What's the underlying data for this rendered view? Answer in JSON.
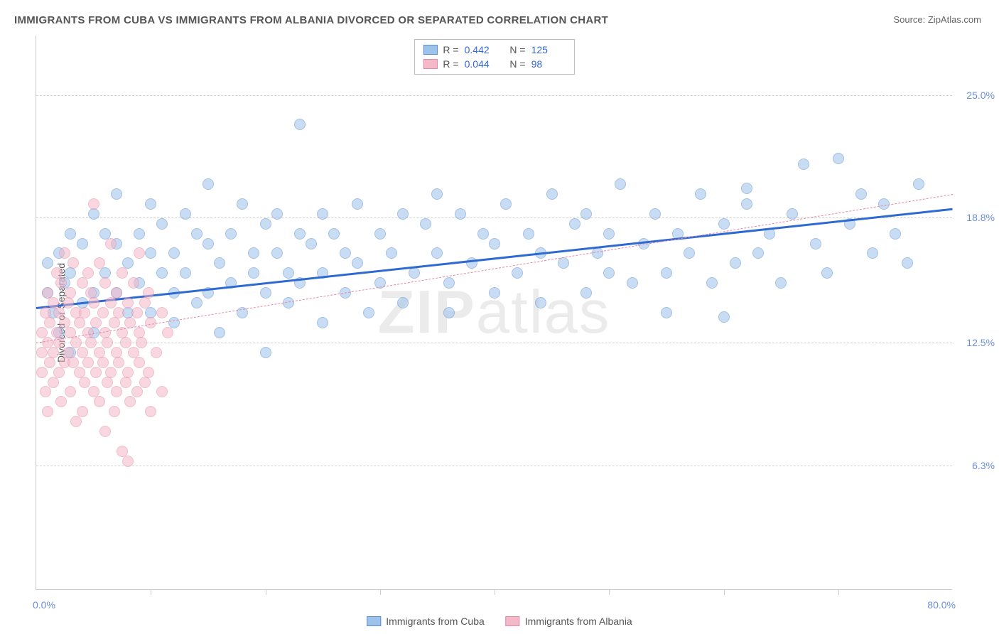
{
  "title": "IMMIGRANTS FROM CUBA VS IMMIGRANTS FROM ALBANIA DIVORCED OR SEPARATED CORRELATION CHART",
  "source_label": "Source: ",
  "source_value": "ZipAtlas.com",
  "watermark": {
    "bold": "ZIP",
    "light": "atlas"
  },
  "chart": {
    "type": "scatter",
    "background_color": "#ffffff",
    "grid_color": "#d0d0d0",
    "axis_color": "#cccccc",
    "tick_label_color": "#6a8fd8",
    "axis_label_color": "#555555",
    "y_label": "Divorced or Separated",
    "xlim": [
      0,
      80
    ],
    "ylim": [
      0,
      28
    ],
    "x_min_label": "0.0%",
    "x_max_label": "80.0%",
    "y_ticks": [
      {
        "value": 6.3,
        "label": "6.3%"
      },
      {
        "value": 12.5,
        "label": "12.5%"
      },
      {
        "value": 18.8,
        "label": "18.8%"
      },
      {
        "value": 25.0,
        "label": "25.0%"
      }
    ],
    "x_tick_positions": [
      10,
      20,
      30,
      40,
      50,
      60,
      70
    ],
    "point_radius": 8,
    "point_opacity": 0.55,
    "series": [
      {
        "name": "Immigrants from Cuba",
        "fill_color": "#9cc3ec",
        "stroke_color": "#5b8ecf",
        "trend_color": "#2e6ad1",
        "trend_width": 3,
        "trend_dash": "solid",
        "R": "0.442",
        "N": "125",
        "trend": {
          "x1": 0,
          "y1": 14.3,
          "x2": 80,
          "y2": 19.3
        },
        "points": [
          [
            1,
            15
          ],
          [
            1,
            16.5
          ],
          [
            1.5,
            14
          ],
          [
            2,
            17
          ],
          [
            2,
            13
          ],
          [
            2.5,
            15.5
          ],
          [
            3,
            18
          ],
          [
            3,
            12
          ],
          [
            3,
            16
          ],
          [
            4,
            14.5
          ],
          [
            4,
            17.5
          ],
          [
            5,
            15
          ],
          [
            5,
            19
          ],
          [
            5,
            13
          ],
          [
            6,
            16
          ],
          [
            6,
            18
          ],
          [
            7,
            15
          ],
          [
            7,
            17.5
          ],
          [
            7,
            20
          ],
          [
            8,
            14
          ],
          [
            8,
            16.5
          ],
          [
            9,
            18
          ],
          [
            9,
            15.5
          ],
          [
            10,
            17
          ],
          [
            10,
            19.5
          ],
          [
            10,
            14
          ],
          [
            11,
            16
          ],
          [
            11,
            18.5
          ],
          [
            12,
            15
          ],
          [
            12,
            17
          ],
          [
            12,
            13.5
          ],
          [
            13,
            19
          ],
          [
            13,
            16
          ],
          [
            14,
            14.5
          ],
          [
            14,
            18
          ],
          [
            15,
            17.5
          ],
          [
            15,
            20.5
          ],
          [
            15,
            15
          ],
          [
            16,
            16.5
          ],
          [
            16,
            13
          ],
          [
            17,
            18
          ],
          [
            17,
            15.5
          ],
          [
            18,
            19.5
          ],
          [
            18,
            14
          ],
          [
            19,
            17
          ],
          [
            19,
            16
          ],
          [
            20,
            18.5
          ],
          [
            20,
            15
          ],
          [
            20,
            12
          ],
          [
            21,
            17
          ],
          [
            21,
            19
          ],
          [
            22,
            16
          ],
          [
            22,
            14.5
          ],
          [
            23,
            18
          ],
          [
            23,
            15.5
          ],
          [
            23,
            23.5
          ],
          [
            24,
            17.5
          ],
          [
            25,
            16
          ],
          [
            25,
            19
          ],
          [
            25,
            13.5
          ],
          [
            26,
            18
          ],
          [
            27,
            15
          ],
          [
            27,
            17
          ],
          [
            28,
            19.5
          ],
          [
            28,
            16.5
          ],
          [
            29,
            14
          ],
          [
            30,
            18
          ],
          [
            30,
            15.5
          ],
          [
            31,
            17
          ],
          [
            32,
            19
          ],
          [
            32,
            14.5
          ],
          [
            33,
            16
          ],
          [
            34,
            18.5
          ],
          [
            35,
            17
          ],
          [
            35,
            20
          ],
          [
            36,
            15.5
          ],
          [
            36,
            14
          ],
          [
            37,
            19
          ],
          [
            38,
            16.5
          ],
          [
            39,
            18
          ],
          [
            40,
            17.5
          ],
          [
            40,
            15
          ],
          [
            41,
            19.5
          ],
          [
            42,
            16
          ],
          [
            43,
            18
          ],
          [
            44,
            14.5
          ],
          [
            44,
            17
          ],
          [
            45,
            20
          ],
          [
            46,
            16.5
          ],
          [
            47,
            18.5
          ],
          [
            48,
            15
          ],
          [
            48,
            19
          ],
          [
            49,
            17
          ],
          [
            50,
            16
          ],
          [
            50,
            18
          ],
          [
            51,
            20.5
          ],
          [
            52,
            15.5
          ],
          [
            53,
            17.5
          ],
          [
            54,
            19
          ],
          [
            55,
            16
          ],
          [
            55,
            14
          ],
          [
            56,
            18
          ],
          [
            57,
            17
          ],
          [
            58,
            20
          ],
          [
            59,
            15.5
          ],
          [
            60,
            18.5
          ],
          [
            60,
            13.8
          ],
          [
            61,
            16.5
          ],
          [
            62,
            19.5
          ],
          [
            62,
            20.3
          ],
          [
            63,
            17
          ],
          [
            64,
            18
          ],
          [
            65,
            15.5
          ],
          [
            66,
            19
          ],
          [
            67,
            21.5
          ],
          [
            68,
            17.5
          ],
          [
            69,
            16
          ],
          [
            70,
            21.8
          ],
          [
            71,
            18.5
          ],
          [
            72,
            20
          ],
          [
            73,
            17
          ],
          [
            74,
            19.5
          ],
          [
            75,
            18
          ],
          [
            76,
            16.5
          ],
          [
            77,
            20.5
          ]
        ]
      },
      {
        "name": "Immigrants from Albania",
        "fill_color": "#f5b8c9",
        "stroke_color": "#e38aa6",
        "trend_color": "#e38aa6",
        "trend_width": 1,
        "trend_dash": "dashed",
        "R": "0.044",
        "N": "98",
        "trend": {
          "x1": 0,
          "y1": 12.5,
          "x2": 80,
          "y2": 20.0
        },
        "points": [
          [
            0.5,
            12
          ],
          [
            0.5,
            13
          ],
          [
            0.5,
            11
          ],
          [
            0.8,
            14
          ],
          [
            0.8,
            10
          ],
          [
            1,
            12.5
          ],
          [
            1,
            15
          ],
          [
            1,
            9
          ],
          [
            1.2,
            13.5
          ],
          [
            1.2,
            11.5
          ],
          [
            1.5,
            14.5
          ],
          [
            1.5,
            12
          ],
          [
            1.5,
            10.5
          ],
          [
            1.8,
            13
          ],
          [
            1.8,
            16
          ],
          [
            2,
            11
          ],
          [
            2,
            14
          ],
          [
            2,
            12.5
          ],
          [
            2.2,
            15.5
          ],
          [
            2.2,
            9.5
          ],
          [
            2.5,
            13.5
          ],
          [
            2.5,
            11.5
          ],
          [
            2.5,
            17
          ],
          [
            2.8,
            12
          ],
          [
            2.8,
            14.5
          ],
          [
            3,
            10
          ],
          [
            3,
            13
          ],
          [
            3,
            15
          ],
          [
            3.2,
            11.5
          ],
          [
            3.2,
            16.5
          ],
          [
            3.5,
            12.5
          ],
          [
            3.5,
            14
          ],
          [
            3.5,
            8.5
          ],
          [
            3.8,
            13.5
          ],
          [
            3.8,
            11
          ],
          [
            4,
            15.5
          ],
          [
            4,
            12
          ],
          [
            4,
            9
          ],
          [
            4.2,
            14
          ],
          [
            4.2,
            10.5
          ],
          [
            4.5,
            13
          ],
          [
            4.5,
            16
          ],
          [
            4.5,
            11.5
          ],
          [
            4.8,
            12.5
          ],
          [
            4.8,
            15
          ],
          [
            5,
            19.5
          ],
          [
            5,
            10
          ],
          [
            5,
            14.5
          ],
          [
            5.2,
            11
          ],
          [
            5.2,
            13.5
          ],
          [
            5.5,
            12
          ],
          [
            5.5,
            16.5
          ],
          [
            5.5,
            9.5
          ],
          [
            5.8,
            14
          ],
          [
            5.8,
            11.5
          ],
          [
            6,
            13
          ],
          [
            6,
            15.5
          ],
          [
            6,
            8
          ],
          [
            6.2,
            12.5
          ],
          [
            6.2,
            10.5
          ],
          [
            6.5,
            14.5
          ],
          [
            6.5,
            11
          ],
          [
            6.5,
            17.5
          ],
          [
            6.8,
            13.5
          ],
          [
            6.8,
            9
          ],
          [
            7,
            12
          ],
          [
            7,
            15
          ],
          [
            7,
            10
          ],
          [
            7.2,
            14
          ],
          [
            7.2,
            11.5
          ],
          [
            7.5,
            13
          ],
          [
            7.5,
            16
          ],
          [
            7.5,
            7
          ],
          [
            7.8,
            12.5
          ],
          [
            7.8,
            10.5
          ],
          [
            8,
            14.5
          ],
          [
            8,
            11
          ],
          [
            8,
            6.5
          ],
          [
            8.2,
            13.5
          ],
          [
            8.2,
            9.5
          ],
          [
            8.5,
            12
          ],
          [
            8.5,
            15.5
          ],
          [
            8.8,
            10
          ],
          [
            8.8,
            14
          ],
          [
            9,
            11.5
          ],
          [
            9,
            13
          ],
          [
            9,
            17
          ],
          [
            9.2,
            12.5
          ],
          [
            9.5,
            10.5
          ],
          [
            9.5,
            14.5
          ],
          [
            9.8,
            11
          ],
          [
            9.8,
            15
          ],
          [
            10,
            13.5
          ],
          [
            10,
            9
          ],
          [
            10.5,
            12
          ],
          [
            11,
            14
          ],
          [
            11,
            10
          ],
          [
            11.5,
            13
          ]
        ]
      }
    ]
  },
  "legend_bottom": [
    {
      "label": "Immigrants from Cuba",
      "fill": "#9cc3ec",
      "stroke": "#5b8ecf"
    },
    {
      "label": "Immigrants from Albania",
      "fill": "#f5b8c9",
      "stroke": "#e38aa6"
    }
  ]
}
